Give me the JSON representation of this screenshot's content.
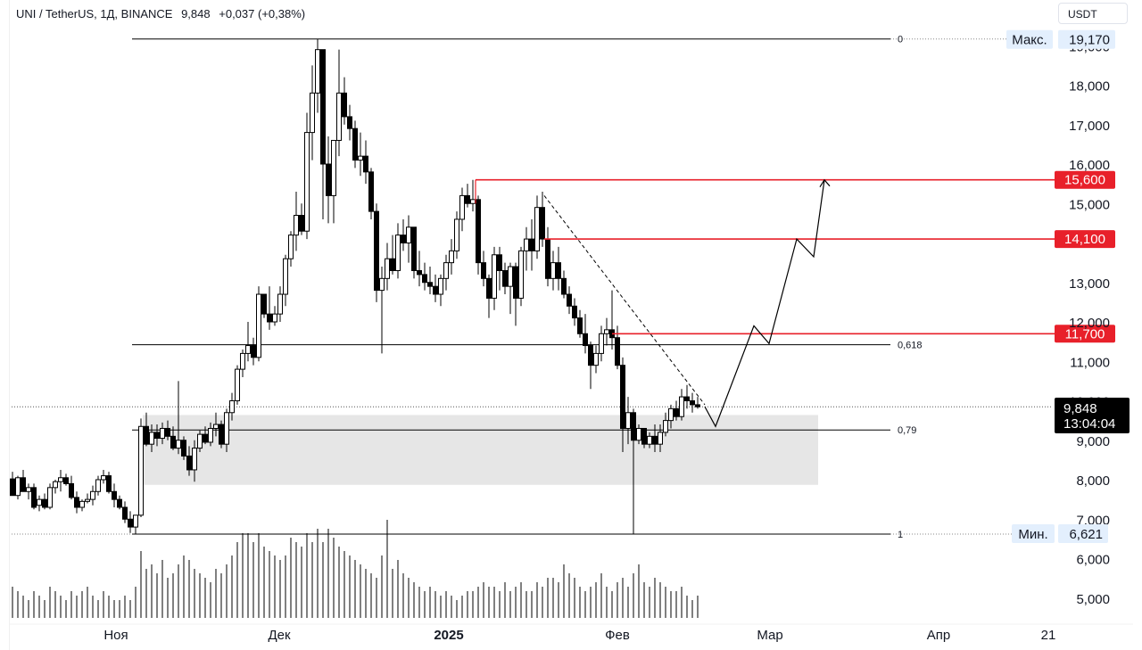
{
  "header": {
    "symbol": "UNI / TetherUS, 1Д, BINANCE",
    "price": "9,848",
    "change": "+0,037 (+0,38%)"
  },
  "currency_button": "USDT",
  "chart_data": {
    "type": "candlestick",
    "y_ticks": [
      "19,000",
      "18,000",
      "17,000",
      "16,000",
      "15,000",
      "13,000",
      "12,000",
      "11,000",
      "10,000",
      "9,000",
      "8,000",
      "7,000",
      "6,000",
      "5,000"
    ],
    "y_tick_values": [
      19000,
      18000,
      17000,
      16000,
      15000,
      13000,
      12000,
      11000,
      10000,
      9000,
      8000,
      7000,
      6000,
      5000
    ],
    "x_ticks": [
      {
        "label": "Ноя",
        "bold": false
      },
      {
        "label": "Дек",
        "bold": false
      },
      {
        "label": "2025",
        "bold": true
      },
      {
        "label": "Фев",
        "bold": false
      },
      {
        "label": "Мар",
        "bold": false
      },
      {
        "label": "Апр",
        "bold": false
      },
      {
        "label": "21",
        "bold": false
      }
    ],
    "max_label": "Макс.",
    "max_value": "19,170",
    "min_label": "Мин.",
    "min_value": "6,621",
    "last_price": "9,848",
    "countdown": "13:04:04",
    "fib_levels": [
      {
        "label": "0",
        "value": 19170
      },
      {
        "label": "0,618",
        "value": 11420
      },
      {
        "label": "0,79",
        "value": 9260
      },
      {
        "label": "1",
        "value": 6621
      }
    ],
    "resistance_levels": [
      {
        "label": "15,600",
        "value": 15600
      },
      {
        "label": "14,100",
        "value": 14100
      },
      {
        "label": "11,700",
        "value": 11700
      }
    ],
    "demand_zone": [
      7870,
      9640
    ],
    "colors": {
      "resistance": "#e8202a",
      "candle": "#000000",
      "zone": "#e6e6e6",
      "text": "#131722"
    }
  }
}
